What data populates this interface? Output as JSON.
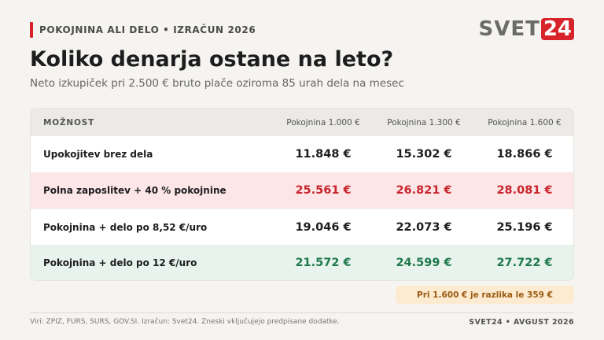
{
  "header": {
    "kicker": "POKOJNINA ALI DELO • IZRAČUN 2026",
    "logo": [
      "SVET",
      "24"
    ],
    "title": "Koliko denarja ostane na leto?",
    "subtitle": "Neto izkupiček pri 2.500 € bruto plače oziroma 85 urah dela na mesec"
  },
  "table": {
    "columns": [
      "MOŽNOST",
      "Pokojnina 1.000 €",
      "Pokojnina 1.300 €",
      "Pokojnina 1.600 €"
    ],
    "rows": [
      [
        "Upokojitev brez dela",
        "11.848 €",
        "15.302 €",
        "18.866 €"
      ],
      [
        "Polna zaposlitev + 40 % pokojnine",
        "25.561 €",
        "26.821 €",
        "28.081 €"
      ],
      [
        "Pokojnina + delo po 8,52 €/uro",
        "19.046 €",
        "22.073 €",
        "25.196 €"
      ],
      [
        "Pokojnina + delo po 12 €/uro",
        "21.572 €",
        "24.599 €",
        "27.722 €"
      ]
    ]
  },
  "note": "Pri 1.600 € je razlika le 359 €",
  "footer": {
    "source": "Viri: ZPIZ, FURS, SURS, GOV.SI. Izračun: Svet24. Zneski vključujejo predpisane dodatke.",
    "credit": "SVET24 • AVGUST 2026"
  }
}
